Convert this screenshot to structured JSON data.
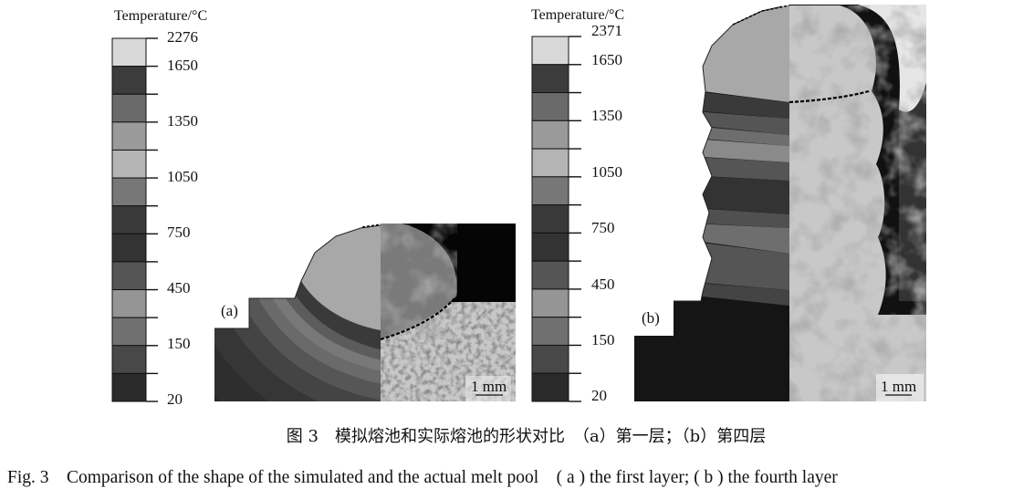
{
  "panels": [
    {
      "label": "(a)",
      "legend": {
        "title": "Temperature/°C",
        "tick_labels": [
          "2276",
          "1650",
          "1350",
          "1050",
          "750",
          "450",
          "150",
          "20"
        ],
        "band_colors": [
          "#d8d8d8",
          "#3c3c3c",
          "#6a6a6a",
          "#9a9a9a",
          "#b4b4b4",
          "#777777",
          "#3a3a3a",
          "#333333",
          "#555555",
          "#959595",
          "#707070",
          "#484848",
          "#2a2a2a"
        ]
      },
      "scale_bar": "1 mm"
    },
    {
      "label": "(b)",
      "legend": {
        "title": "Temperature/°C",
        "tick_labels": [
          "2371",
          "1650",
          "1350",
          "1050",
          "750",
          "450",
          "150",
          "20"
        ],
        "band_colors": [
          "#d8d8d8",
          "#3c3c3c",
          "#6a6a6a",
          "#9a9a9a",
          "#b4b4b4",
          "#777777",
          "#3a3a3a",
          "#333333",
          "#555555",
          "#959595",
          "#707070",
          "#484848",
          "#2a2a2a"
        ]
      },
      "scale_bar": "1 mm"
    }
  ],
  "caption": {
    "zh": "图 3　模拟熔池和实际熔池的形状对比　（a）第一层；（b）第四层",
    "en": "Fig. 3　Comparison of the shape of the simulated and the actual melt pool　( a ) the first layer; ( b ) the fourth layer"
  }
}
